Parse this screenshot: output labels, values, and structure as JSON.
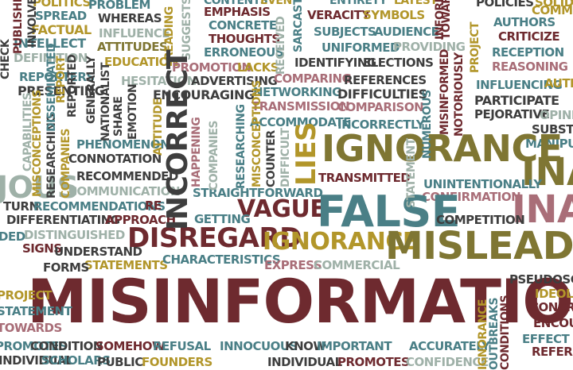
{
  "image": {
    "kind": "word cloud",
    "palette": {
      "maroon": "#6e2a2f",
      "teal": "#4a7f86",
      "mustard": "#b2962a",
      "olive": "#7f7633",
      "mauve": "#a96e78",
      "charcoal": "#3e3e3e",
      "sage": "#9fb1a8",
      "background": "#ffffff"
    },
    "words": [
      "MISINFORMATION",
      "PERCEPTION",
      "FALSE",
      "MISLEADING",
      "INCORRECT",
      "DISREGARD",
      "IGNORANCE",
      "VAGUE",
      "LIES",
      "MO",
      "INAC",
      "JOUS",
      "POLITICS",
      "PROBLEM",
      "ENTIRETY",
      "LATEST",
      "CONTENTS",
      "EVEN",
      "POLICIES",
      "SOLID",
      "SPREAD",
      "WHEREAS",
      "EMPHASIS",
      "VERACITY",
      "SYMBOLS",
      "AUTHORS",
      "COMM",
      "FACTUAL",
      "INFLUENCE",
      "CONCRETE",
      "SUBJECTS",
      "AUDIENCE",
      "CRITICIZE",
      "INTELLECT",
      "ATTITUDES",
      "THOUGHTS",
      "UNIFORMED",
      "PROVIDING",
      "RECEPTION",
      "DEFINITION",
      "EDUCATION",
      "ERRONEOUS",
      "IDENTIFYING",
      "ELECTIONS",
      "REASONING",
      "PROMOTION",
      "LACKS",
      "REPORTERS",
      "HESITATION",
      "ADVERTISING",
      "COMPARING",
      "REFERENCES",
      "INFLUENCING",
      "AUTH",
      "PRESENTING",
      "ENCOURAGING",
      "NETWORKING",
      "DIFFICULTIES",
      "PARTICIPATE",
      "PEJORATIVE",
      "OPINIO",
      "TRANSMISSION",
      "COMPARISON",
      "ACCOMMODATE",
      "INCORRECTLY",
      "SUBSTIT",
      "PHENOMENON",
      "MANIPU",
      "CONNOTATION",
      "TRANSMITTED",
      "RECOMMENDED",
      "UNINTENTIONALLY",
      "COMMUNICATION",
      "STRAIGHTFORWARD",
      "CONFIRMATION",
      "TURN",
      "RECOMMENDATIONS",
      "RE",
      "DIFFERENTIATING",
      "APPROACH",
      "GETTING",
      "COMPETITION",
      "DED",
      "DISTINGUISHED",
      "UNDERSTAND",
      "SIGNS",
      "STATEMENTS",
      "CHARACTERISTICS",
      "EXPRESS",
      "COMMERCIAL",
      "FORMS",
      "PSEUDOSCI",
      "IDEOLO",
      "CONCRE",
      "ENCOU",
      "EFFECT",
      "REFERR",
      "CONDITION",
      "SOMEHOW",
      "REFUSAL",
      "INNOCUOUS",
      "KNOW",
      "IMPORTANT",
      "ACCURATELY",
      "SCHOLARS",
      "PUBLIC",
      "FOUNDERS",
      "INDIVIDUAL",
      "PROMOTES",
      "CONFIDENCE",
      "HEAVY",
      "FIED",
      "IMES",
      "CHECK",
      "PUBLISHED",
      "INVOLVE",
      "REPORTED",
      "NATIONALIST",
      "GENERALLY",
      "SHARE",
      "EMOTION",
      "READING",
      "SUGGESTS",
      "ATTITUDE",
      "HAPPENING",
      "COMPANIES",
      "RESEARCHING",
      "MISCONCEPTIONS",
      "COUNTER",
      "DIFFICULT",
      "RECEIVED",
      "SARCASTIC",
      "NUMEROUS",
      "MISINFORMED",
      "NOTORIOUSLY",
      "INFORMATION",
      "PROJECT",
      "STATEMENT",
      "TOWARDS",
      "REPORT",
      "DISSEMINATED",
      "CAPABILITIES",
      "OUTBREAKS",
      "CONDITIONS",
      "NEWSPAPER",
      "DUCE",
      "CONSTITUENT",
      "ACCEPTANCE",
      "SUPPORTING",
      "INTERPRET",
      "SORT",
      "NONS",
      "NITY",
      "ISTIC",
      "IIZATION",
      "CAL",
      "CATION",
      "ORIGIN"
    ]
  }
}
